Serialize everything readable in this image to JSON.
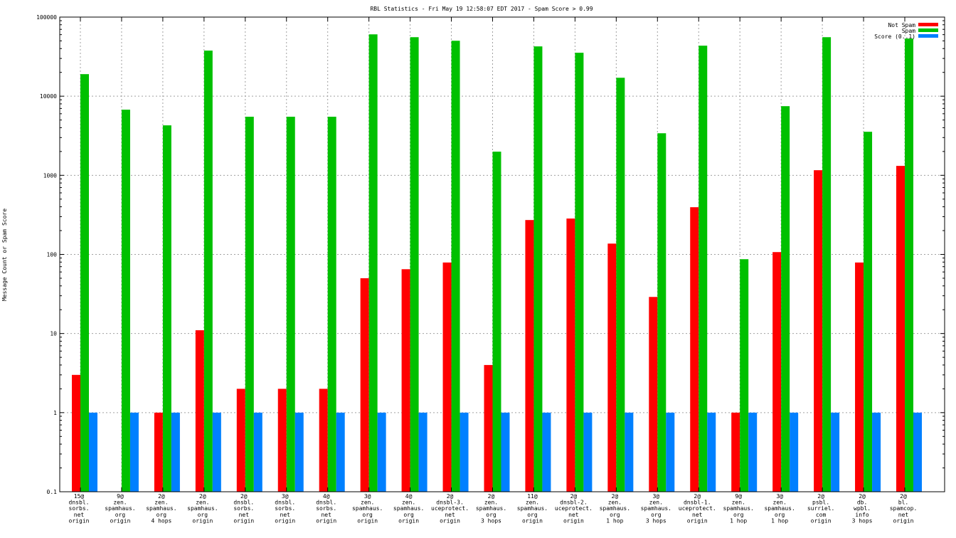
{
  "chart_data": {
    "type": "bar",
    "title": "RBL Statistics - Fri May 19 12:58:07 EDT 2017 - Spam Score > 0.99",
    "xlabel": "",
    "ylabel": "Message Count or Spam Score",
    "yscale": "log",
    "ylim": [
      0.1,
      100000
    ],
    "yticks": [
      "0.1",
      "1",
      "10",
      "100",
      "1000",
      "10000",
      "100000"
    ],
    "grid": true,
    "legend_position": "top-right",
    "categories": [
      [
        "15@",
        "dnsbl.",
        "sorbs.",
        "net",
        "origin"
      ],
      [
        "9@",
        "zen.",
        "spamhaus.",
        "org",
        "origin"
      ],
      [
        "2@",
        "zen.",
        "spamhaus.",
        "org",
        "4 hops"
      ],
      [
        "2@",
        "zen.",
        "spamhaus.",
        "org",
        "origin"
      ],
      [
        "2@",
        "dnsbl.",
        "sorbs.",
        "net",
        "origin"
      ],
      [
        "3@",
        "dnsbl.",
        "sorbs.",
        "net",
        "origin"
      ],
      [
        "4@",
        "dnsbl.",
        "sorbs.",
        "net",
        "origin"
      ],
      [
        "3@",
        "zen.",
        "spamhaus.",
        "org",
        "origin"
      ],
      [
        "4@",
        "zen.",
        "spamhaus.",
        "org",
        "origin"
      ],
      [
        "2@",
        "dnsbl-3.",
        "uceprotect.",
        "net",
        "origin"
      ],
      [
        "2@",
        "zen.",
        "spamhaus.",
        "org",
        "3 hops"
      ],
      [
        "11@",
        "zen.",
        "spamhaus.",
        "org",
        "origin"
      ],
      [
        "2@",
        "dnsbl-2.",
        "uceprotect.",
        "net",
        "origin"
      ],
      [
        "2@",
        "zen.",
        "spamhaus.",
        "org",
        "1 hop"
      ],
      [
        "3@",
        "zen.",
        "spamhaus.",
        "org",
        "3 hops"
      ],
      [
        "2@",
        "dnsbl-1.",
        "uceprotect.",
        "net",
        "origin"
      ],
      [
        "9@",
        "zen.",
        "spamhaus.",
        "org",
        "1 hop"
      ],
      [
        "3@",
        "zen.",
        "spamhaus.",
        "org",
        "1 hop"
      ],
      [
        "2@",
        "psbl.",
        "surriel.",
        "com",
        "origin"
      ],
      [
        "2@",
        "db.",
        "wpbl.",
        "info",
        "3 hops"
      ],
      [
        "2@",
        "bl.",
        "spamcop.",
        "net",
        "origin"
      ]
    ],
    "series": [
      {
        "name": "Not Spam",
        "color": "#ff0000",
        "values": [
          3,
          0,
          1,
          11,
          2,
          2,
          2,
          50,
          65,
          79,
          4,
          272,
          284,
          137,
          29,
          395,
          1,
          107,
          1160,
          79,
          1315
        ]
      },
      {
        "name": "Spam",
        "color": "#00c000",
        "values": [
          19000,
          6750,
          4280,
          37700,
          5500,
          5500,
          5500,
          60500,
          55700,
          50200,
          1990,
          42600,
          35400,
          17100,
          3400,
          43500,
          87,
          7480,
          55700,
          3550,
          53500
        ]
      },
      {
        "name": "Score (0..1)",
        "color": "#0080ff",
        "values": [
          1,
          1,
          1,
          1,
          1,
          1,
          1,
          1,
          1,
          1,
          1,
          1,
          1,
          1,
          1,
          1,
          1,
          1,
          1,
          1,
          1
        ]
      }
    ]
  }
}
